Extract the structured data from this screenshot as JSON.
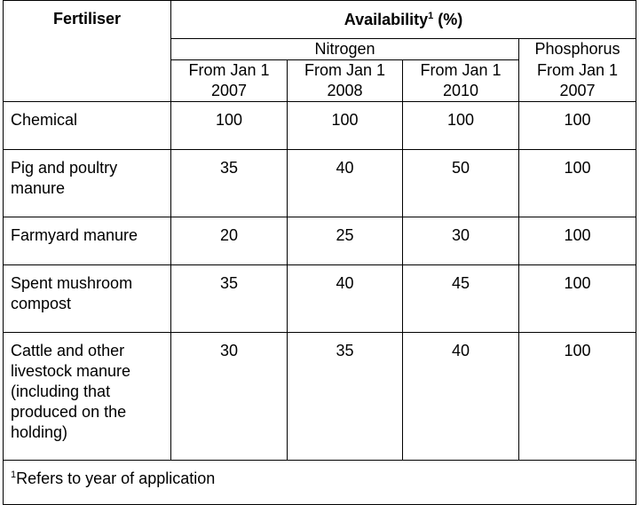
{
  "headers": {
    "fertiliser": "Fertiliser",
    "availability": "Availability",
    "availability_sup": "1",
    "availability_unit": " (%)",
    "nitrogen": "Nitrogen",
    "phosphorus": "Phosphorus"
  },
  "date_columns": [
    {
      "line1": "From Jan 1",
      "line2": "2007"
    },
    {
      "line1": "From Jan 1",
      "line2": "2008"
    },
    {
      "line1": "From Jan 1",
      "line2": "2010"
    },
    {
      "line1": "From Jan 1",
      "line2": "2007"
    }
  ],
  "rows": [
    {
      "name": "Chemical",
      "values": [
        "100",
        "100",
        "100",
        "100"
      ]
    },
    {
      "name": "Pig and poultry manure",
      "values": [
        "35",
        "40",
        "50",
        "100"
      ]
    },
    {
      "name": "Farmyard manure",
      "values": [
        "20",
        "25",
        "30",
        "100"
      ]
    },
    {
      "name": "Spent mushroom compost",
      "values": [
        "35",
        "40",
        "45",
        "100"
      ]
    },
    {
      "name": "Cattle and other livestock manure (including that produced on the holding)",
      "values": [
        "30",
        "35",
        "40",
        "100"
      ]
    }
  ],
  "footnote": {
    "marker": "1",
    "text": "Refers to year of application"
  }
}
